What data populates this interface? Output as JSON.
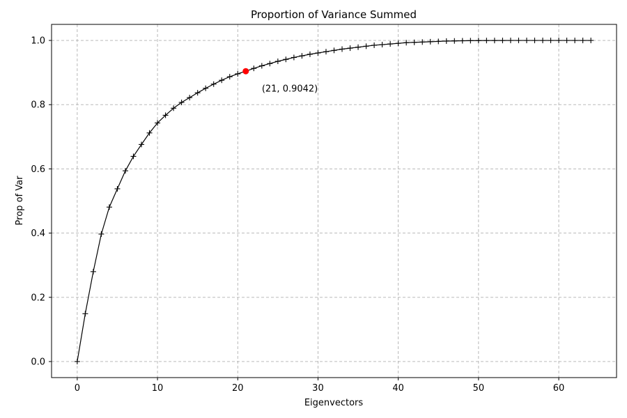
{
  "chart_data": {
    "type": "line",
    "title": "Proportion of Variance Summed",
    "xlabel": "Eigenvectors",
    "ylabel": "Prop of Var",
    "xlim": [
      -3.2,
      67.2
    ],
    "ylim": [
      -0.05,
      1.05
    ],
    "xticks": [
      0,
      10,
      20,
      30,
      40,
      50,
      60
    ],
    "yticks": [
      0.0,
      0.2,
      0.4,
      0.6,
      0.8,
      1.0
    ],
    "xtick_labels": [
      "0",
      "10",
      "20",
      "30",
      "40",
      "50",
      "60"
    ],
    "ytick_labels": [
      "0.0",
      "0.2",
      "0.4",
      "0.6",
      "0.8",
      "1.0"
    ],
    "grid": true,
    "series": [
      {
        "color": "#000000",
        "marker": "plus",
        "x": [
          0,
          1,
          2,
          3,
          4,
          5,
          6,
          7,
          8,
          9,
          10,
          11,
          12,
          13,
          14,
          15,
          16,
          17,
          18,
          19,
          20,
          21,
          22,
          23,
          24,
          25,
          26,
          27,
          28,
          29,
          30,
          31,
          32,
          33,
          34,
          35,
          36,
          37,
          38,
          39,
          40,
          41,
          42,
          43,
          44,
          45,
          46,
          47,
          48,
          49,
          50,
          51,
          52,
          53,
          54,
          55,
          56,
          57,
          58,
          59,
          60,
          61,
          62,
          63,
          64
        ],
        "y": [
          0.0,
          0.149,
          0.28,
          0.397,
          0.481,
          0.538,
          0.594,
          0.639,
          0.676,
          0.712,
          0.743,
          0.767,
          0.789,
          0.807,
          0.822,
          0.837,
          0.851,
          0.864,
          0.876,
          0.887,
          0.896,
          0.9042,
          0.913,
          0.921,
          0.928,
          0.935,
          0.941,
          0.947,
          0.952,
          0.957,
          0.961,
          0.965,
          0.969,
          0.973,
          0.976,
          0.979,
          0.982,
          0.985,
          0.987,
          0.989,
          0.991,
          0.993,
          0.994,
          0.995,
          0.996,
          0.997,
          0.998,
          0.9985,
          0.999,
          0.9993,
          0.9995,
          0.9997,
          0.9998,
          0.9999,
          1.0,
          1.0,
          1.0,
          1.0,
          1.0,
          1.0,
          1.0,
          1.0,
          1.0,
          1.0,
          1.0
        ]
      }
    ],
    "highlight": {
      "x": 21,
      "y": 0.9042,
      "color": "#ff0000"
    },
    "annotation": {
      "text": "(21, 0.9042)",
      "x": 23,
      "y": 0.85
    }
  }
}
